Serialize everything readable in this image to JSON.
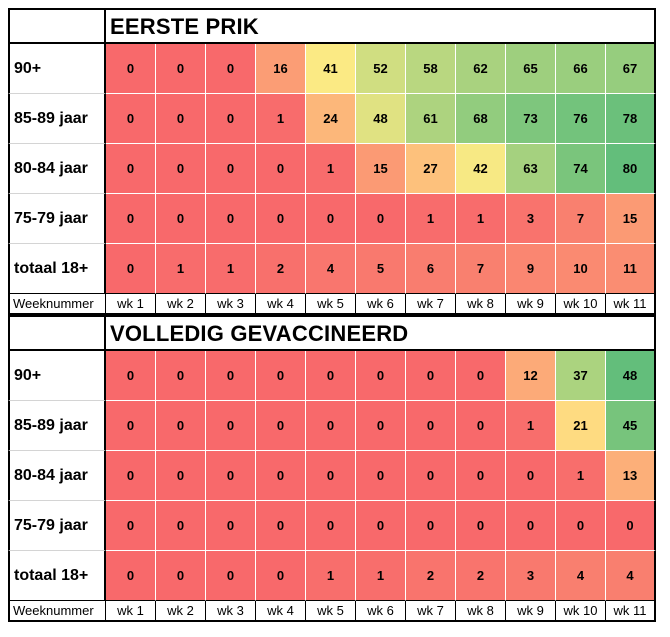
{
  "chart_data": [
    {
      "type": "heatmap",
      "title": "EERSTE PRIK",
      "xlabel": "Weeknummer",
      "categories": [
        "wk 1",
        "wk 2",
        "wk 3",
        "wk 4",
        "wk 5",
        "wk 6",
        "wk 7",
        "wk 8",
        "wk 9",
        "wk 10",
        "wk 11"
      ],
      "series": [
        {
          "name": "90+",
          "values": [
            0,
            0,
            0,
            16,
            41,
            52,
            58,
            62,
            65,
            66,
            67
          ]
        },
        {
          "name": "85-89 jaar",
          "values": [
            0,
            0,
            0,
            1,
            24,
            48,
            61,
            68,
            73,
            76,
            78
          ]
        },
        {
          "name": "80-84 jaar",
          "values": [
            0,
            0,
            0,
            0,
            1,
            15,
            27,
            42,
            63,
            74,
            80
          ]
        },
        {
          "name": "75-79 jaar",
          "values": [
            0,
            0,
            0,
            0,
            0,
            0,
            1,
            1,
            3,
            7,
            15
          ]
        },
        {
          "name": "totaal 18+",
          "values": [
            0,
            1,
            1,
            2,
            4,
            5,
            6,
            7,
            9,
            10,
            11
          ]
        }
      ],
      "color_scale": {
        "low": "#F8696B",
        "mid": "#FFEB84",
        "high": "#63BE7B",
        "min": 0,
        "max": 80
      }
    },
    {
      "type": "heatmap",
      "title": "VOLLEDIG GEVACCINEERD",
      "xlabel": "Weeknummer",
      "categories": [
        "wk 1",
        "wk 2",
        "wk 3",
        "wk 4",
        "wk 5",
        "wk 6",
        "wk 7",
        "wk 8",
        "wk 9",
        "wk 10",
        "wk 11"
      ],
      "series": [
        {
          "name": "90+",
          "values": [
            0,
            0,
            0,
            0,
            0,
            0,
            0,
            0,
            12,
            37,
            48
          ]
        },
        {
          "name": "85-89 jaar",
          "values": [
            0,
            0,
            0,
            0,
            0,
            0,
            0,
            0,
            1,
            21,
            45
          ]
        },
        {
          "name": "80-84 jaar",
          "values": [
            0,
            0,
            0,
            0,
            0,
            0,
            0,
            0,
            0,
            1,
            13
          ]
        },
        {
          "name": "75-79 jaar",
          "values": [
            0,
            0,
            0,
            0,
            0,
            0,
            0,
            0,
            0,
            0,
            0
          ]
        },
        {
          "name": "totaal 18+",
          "values": [
            0,
            0,
            0,
            0,
            1,
            1,
            2,
            2,
            3,
            4,
            4
          ]
        }
      ],
      "color_scale": {
        "low": "#F8696B",
        "mid": "#FFEB84",
        "high": "#63BE7B",
        "min": 0,
        "max": 48
      }
    }
  ]
}
